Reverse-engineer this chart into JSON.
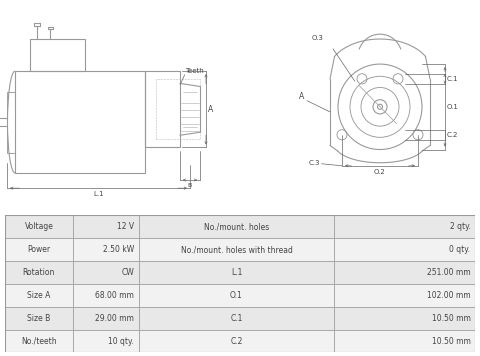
{
  "bg_color": "#ffffff",
  "table_row_bg1": "#e8e8e8",
  "table_row_bg2": "#f2f2f2",
  "table_border": "#999999",
  "text_color": "#444444",
  "line_color": "#999999",
  "dim_color": "#666666",
  "table_data": [
    [
      "Voltage",
      "12 V",
      "No./mount. holes",
      "2 qty."
    ],
    [
      "Power",
      "2.50 kW",
      "No./mount. holes with thread",
      "0 qty."
    ],
    [
      "Rotation",
      "CW",
      "L.1",
      "251.00 mm"
    ],
    [
      "Size A",
      "68.00 mm",
      "O.1",
      "102.00 mm"
    ],
    [
      "Size B",
      "29.00 mm",
      "C.1",
      "10.50 mm"
    ],
    [
      "No./teeth",
      "10 qty.",
      "C.2",
      "10.50 mm"
    ]
  ]
}
